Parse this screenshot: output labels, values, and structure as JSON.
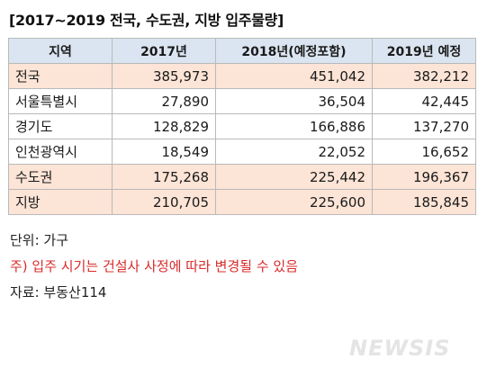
{
  "title": "[2017~2019 전국, 수도권, 지방 입주물량]",
  "table": {
    "headers": [
      "지역",
      "2017년",
      "2018년(예정포함)",
      "2019년 예정"
    ],
    "rows": [
      {
        "region": "전국",
        "values": [
          "385,973",
          "451,042",
          "382,212"
        ],
        "highlight": true
      },
      {
        "region": "서울특별시",
        "values": [
          "27,890",
          "36,504",
          "42,445"
        ],
        "highlight": false
      },
      {
        "region": "경기도",
        "values": [
          "128,829",
          "166,886",
          "137,270"
        ],
        "highlight": false
      },
      {
        "region": "인천광역시",
        "values": [
          "18,549",
          "22,052",
          "16,652"
        ],
        "highlight": false
      },
      {
        "region": "수도권",
        "values": [
          "175,268",
          "225,442",
          "196,367"
        ],
        "highlight": true
      },
      {
        "region": "지방",
        "values": [
          "210,705",
          "225,600",
          "185,845"
        ],
        "highlight": true
      }
    ]
  },
  "notes": {
    "unit": "단위: 가구",
    "caution": "주) 입주 시기는 건설사 사정에 따라 변경될 수 있음",
    "source": "자료: 부동산114"
  },
  "watermark": "NEWSIS",
  "colors": {
    "header_bg": "#dbe5f1",
    "highlight_bg": "#fce4d6",
    "caution_text": "#d92b2b"
  }
}
